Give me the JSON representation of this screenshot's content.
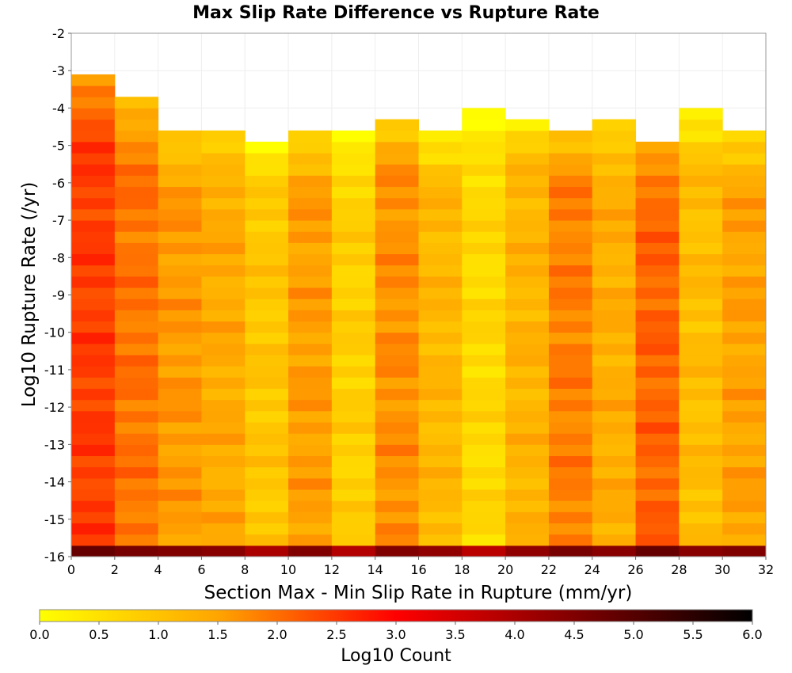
{
  "chart_data": {
    "type": "heatmap",
    "title": "Max Slip Rate Difference vs Rupture Rate",
    "xlabel": "Section Max - Min Slip Rate in Rupture (mm/yr)",
    "ylabel": "Log10 Rupture Rate (/yr)",
    "colorbar_label": "Log10 Count",
    "xlim": [
      0,
      32
    ],
    "ylim": [
      -16,
      -2
    ],
    "x_ticks": [
      "0",
      "2",
      "4",
      "6",
      "8",
      "10",
      "12",
      "14",
      "16",
      "18",
      "20",
      "22",
      "24",
      "26",
      "28",
      "30",
      "32"
    ],
    "y_ticks": [
      "-2",
      "-3",
      "-4",
      "-5",
      "-6",
      "-7",
      "-8",
      "-9",
      "-10",
      "-11",
      "-12",
      "-13",
      "-14",
      "-15",
      "-16"
    ],
    "colorbar_ticks": [
      "0.0",
      "0.5",
      "1.0",
      "1.5",
      "2.0",
      "2.5",
      "3.0",
      "3.5",
      "4.0",
      "4.5",
      "5.0",
      "5.5",
      "6.0"
    ],
    "colorbar_range": [
      0,
      6
    ],
    "colorscale": [
      "#ffff00",
      "#ffa500",
      "#ff0000",
      "#800000",
      "#000000"
    ],
    "x_bin_width": 2,
    "y_bin_height": 0.3,
    "y_bin_start": -16,
    "column_base_values": [
      2.45,
      1.95,
      1.6,
      1.4,
      0.95,
      1.55,
      0.8,
      1.7,
      1.2,
      0.65,
      1.25,
      1.85,
      1.35,
      2.1,
      1.1,
      1.5
    ],
    "column_top_log_rate": [
      -3.0,
      -3.6,
      -4.4,
      -4.4,
      -4.7,
      -4.4,
      -4.4,
      -4.1,
      -4.4,
      -3.8,
      -4.1,
      -4.4,
      -4.1,
      -4.7,
      -3.8,
      -4.4
    ],
    "bottom_row_values": [
      4.8,
      4.6,
      4.5,
      4.4,
      4.0,
      4.5,
      3.9,
      4.5,
      4.3,
      3.8,
      4.3,
      4.6,
      4.4,
      4.8,
      4.4,
      4.5
    ],
    "gridlines": true
  }
}
